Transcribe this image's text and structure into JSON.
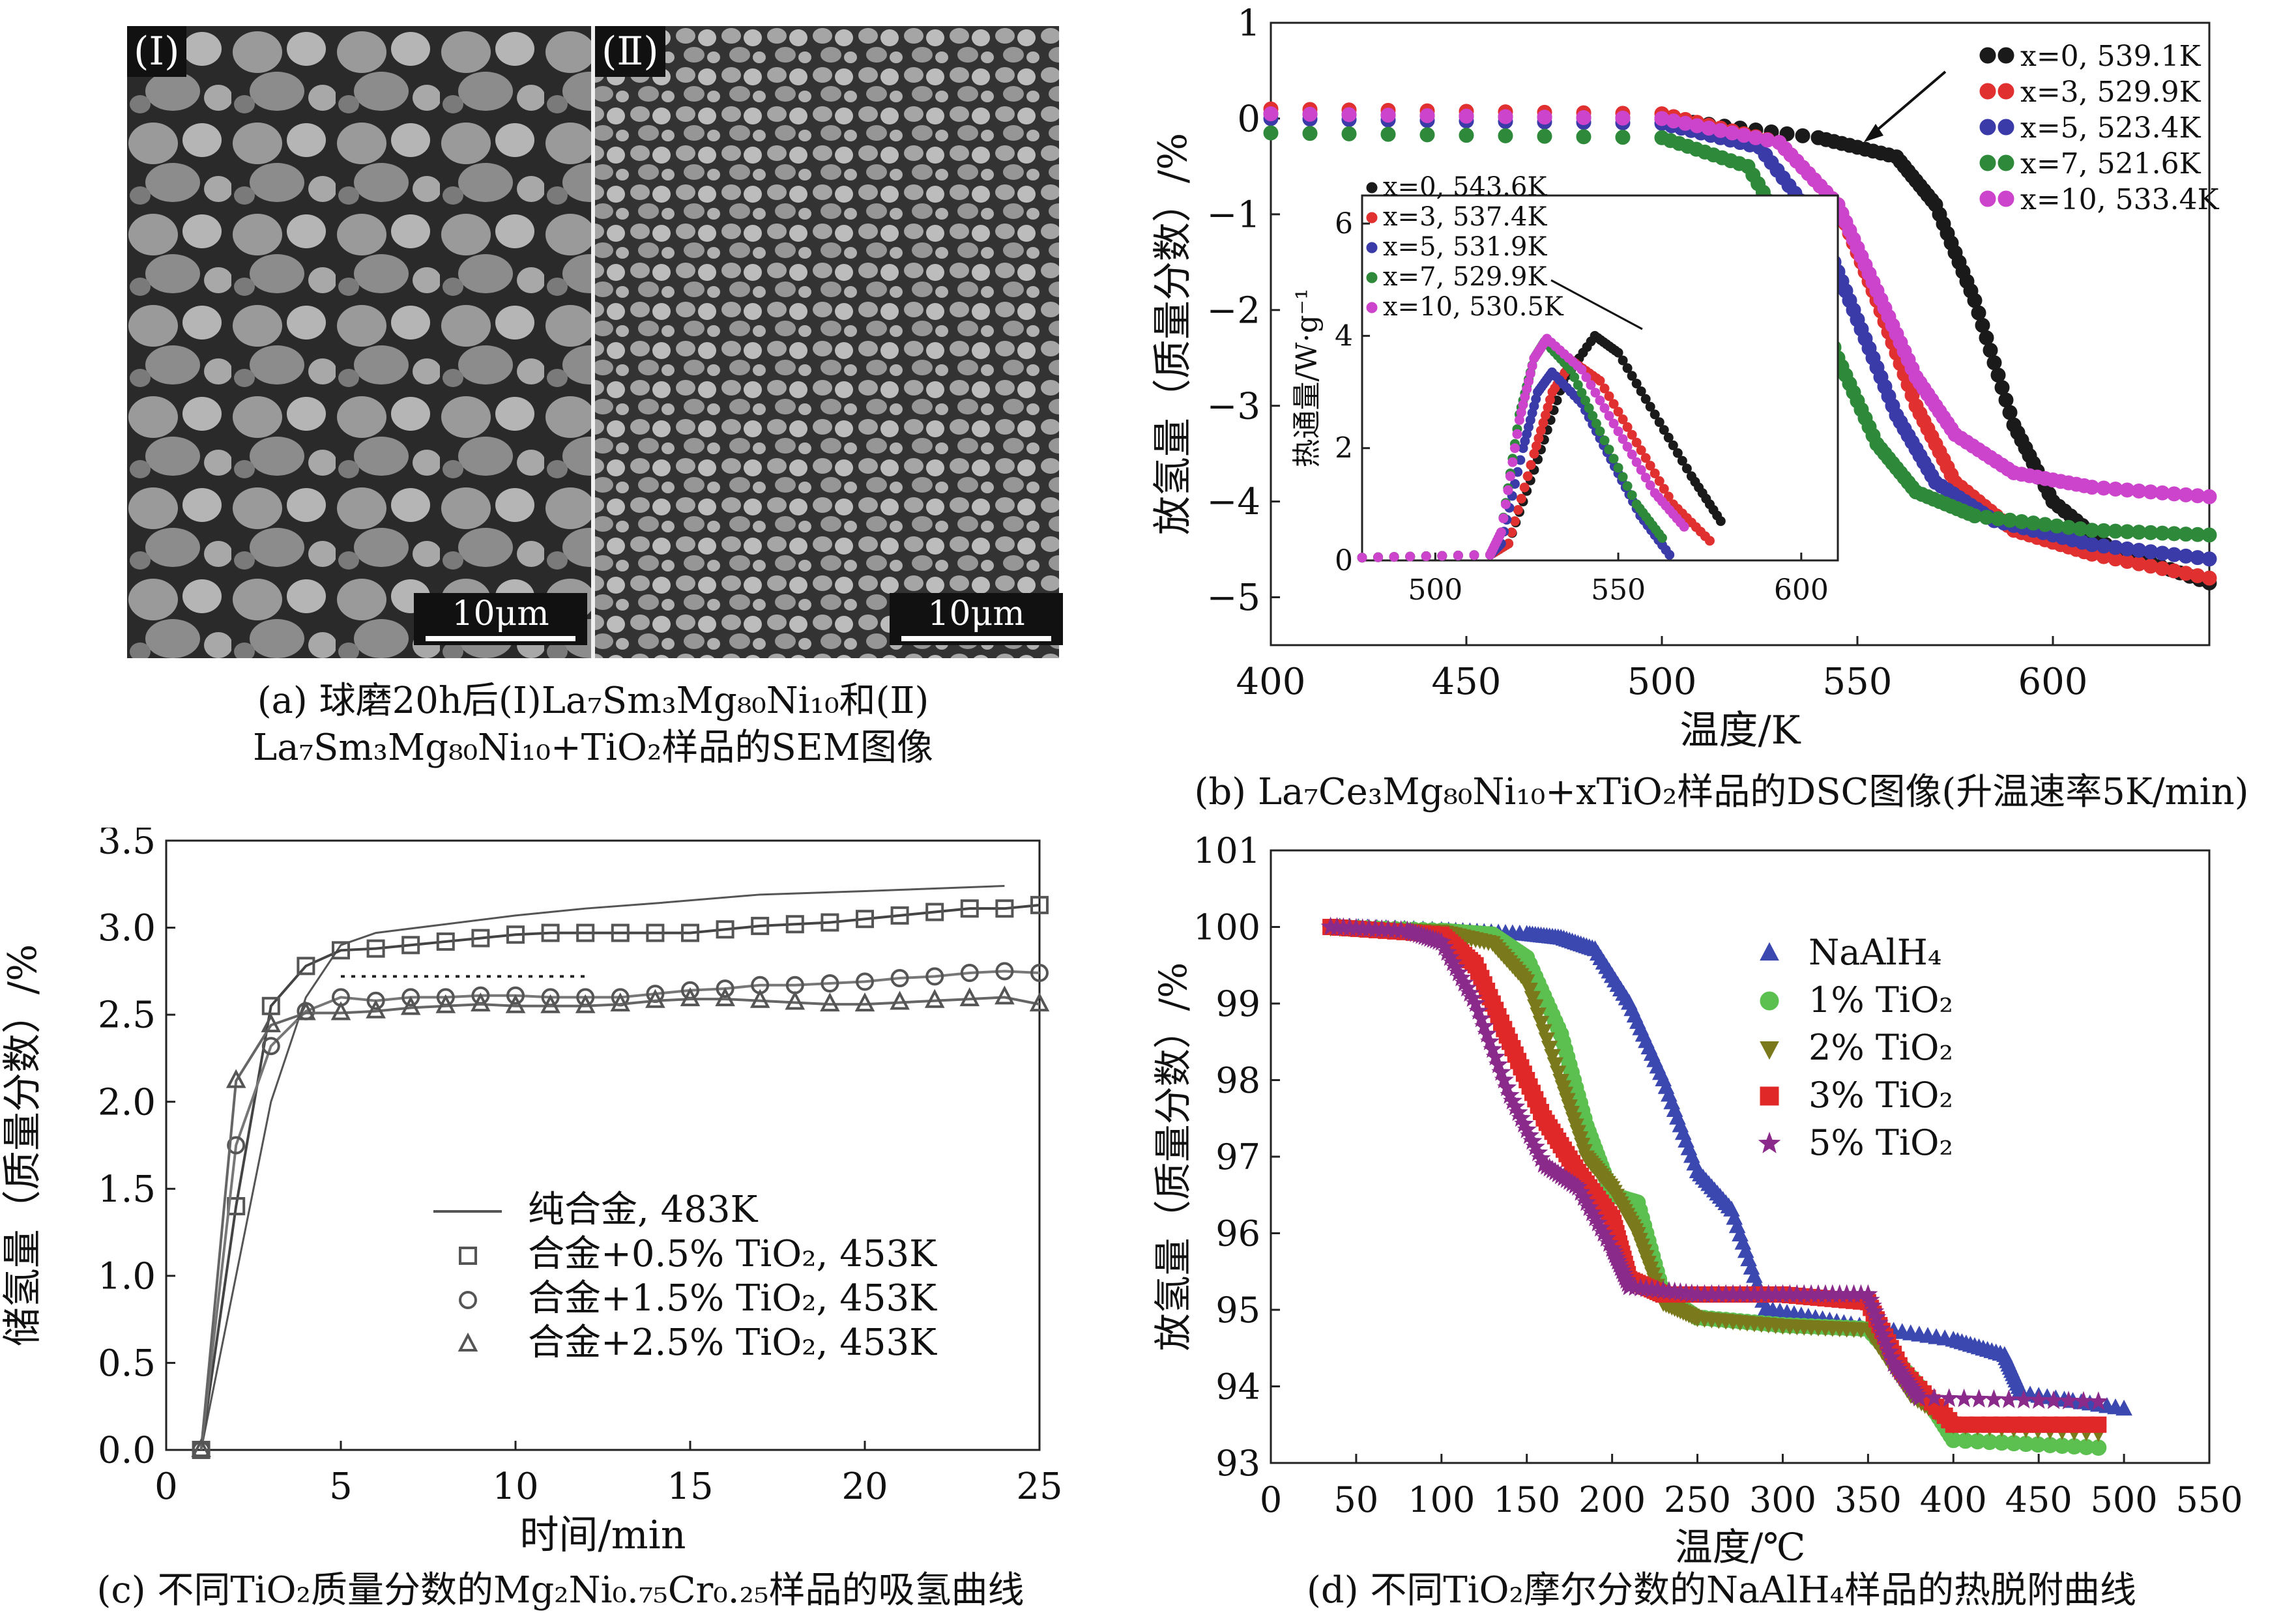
{
  "panel_a": {
    "label_I": "(Ⅰ)",
    "label_II": "(Ⅱ)",
    "scale_I": "10μm",
    "scale_II": "10μm",
    "caption_line1": "(a) 球磨20h后(Ⅰ)La₇Sm₃Mg₈₀Ni₁₀和(Ⅱ)",
    "caption_line2": "La₇Sm₃Mg₈₀Ni₁₀+TiO₂样品的SEM图像"
  },
  "panel_b": {
    "caption": "(b) La₇Ce₃Mg₈₀Ni₁₀+xTiO₂样品的DSC图像(升温速率5K/min)"
  },
  "panel_c": {
    "caption": "(c) 不同TiO₂质量分数的Mg₂Ni₀.₇₅Cr₀.₂₅样品的吸氢曲线"
  },
  "panel_d": {
    "caption": "(d) 不同TiO₂摩尔分数的NaAlH₄样品的热脱附曲线"
  },
  "chart_data": [
    {
      "id": "b_main",
      "type": "line",
      "xlabel": "温度/K",
      "ylabel": "放氢量（质量分数）/%",
      "xlim": [
        400,
        640
      ],
      "ylim": [
        -5.5,
        1
      ],
      "xticks": [
        "400",
        "450",
        "500",
        "550",
        "600"
      ],
      "yticks": [
        "1",
        "0",
        "−1",
        "−2",
        "−3",
        "−4",
        "−5"
      ],
      "legend": "top-right",
      "series": [
        {
          "name": "x=0, 539.1K",
          "color": "#1a1a1a",
          "x": [
            400,
            500,
            540,
            560,
            570,
            580,
            590,
            600,
            615,
            640
          ],
          "y": [
            0.05,
            0.0,
            -0.2,
            -0.4,
            -0.9,
            -1.9,
            -3.2,
            -4.0,
            -4.5,
            -4.85
          ]
        },
        {
          "name": "x=3, 529.9K",
          "color": "#e03030",
          "x": [
            400,
            500,
            530,
            545,
            555,
            565,
            575,
            590,
            610,
            640
          ],
          "y": [
            0.1,
            0.05,
            -0.25,
            -0.9,
            -1.9,
            -3.0,
            -3.8,
            -4.3,
            -4.55,
            -4.8
          ]
        },
        {
          "name": "x=5, 523.4K",
          "color": "#3a3aa8",
          "x": [
            400,
            500,
            525,
            540,
            550,
            560,
            570,
            585,
            610,
            640
          ],
          "y": [
            0.0,
            -0.05,
            -0.3,
            -1.1,
            -2.1,
            -3.1,
            -3.8,
            -4.2,
            -4.45,
            -4.6
          ]
        },
        {
          "name": "x=7, 521.6K",
          "color": "#2e8a3a",
          "x": [
            400,
            500,
            522,
            535,
            545,
            555,
            565,
            580,
            610,
            640
          ],
          "y": [
            -0.15,
            -0.2,
            -0.5,
            -1.4,
            -2.5,
            -3.4,
            -3.9,
            -4.15,
            -4.3,
            -4.35
          ]
        },
        {
          "name": "x=10, 533.4K",
          "color": "#cc44cc",
          "x": [
            400,
            500,
            530,
            545,
            555,
            565,
            575,
            590,
            610,
            640
          ],
          "y": [
            0.05,
            0.0,
            -0.25,
            -0.9,
            -1.8,
            -2.7,
            -3.3,
            -3.7,
            -3.85,
            -3.95
          ]
        }
      ]
    },
    {
      "id": "b_inset",
      "type": "line",
      "xlabel": "",
      "ylabel": "热通量/W·g⁻¹",
      "xlim": [
        480,
        610
      ],
      "ylim": [
        0,
        6.5
      ],
      "xticks": [
        "500",
        "550",
        "600"
      ],
      "yticks": [
        "0",
        "2",
        "4",
        "6"
      ],
      "legend": "top-left",
      "series": [
        {
          "name": "x=0, 543.6K",
          "color": "#1a1a1a",
          "x": [
            480,
            515,
            520,
            528,
            535,
            543.6,
            550,
            560,
            570,
            578
          ],
          "y": [
            0.05,
            0.1,
            0.3,
            1.8,
            3.2,
            4.0,
            3.7,
            2.6,
            1.5,
            0.7
          ]
        },
        {
          "name": "x=3, 537.4K",
          "color": "#e03030",
          "x": [
            480,
            515,
            520,
            527,
            532,
            537.4,
            545,
            555,
            565,
            575
          ],
          "y": [
            0.05,
            0.1,
            0.3,
            1.9,
            3.0,
            3.55,
            3.2,
            2.1,
            1.0,
            0.35
          ]
        },
        {
          "name": "x=5, 531.9K",
          "color": "#3a3aa8",
          "x": [
            480,
            515,
            518,
            524,
            528,
            531.9,
            540,
            548,
            556,
            564
          ],
          "y": [
            0.05,
            0.1,
            0.3,
            2.0,
            3.0,
            3.35,
            2.8,
            1.8,
            0.8,
            0.1
          ]
        },
        {
          "name": "x=7, 529.9K",
          "color": "#2e8a3a",
          "x": [
            480,
            515,
            518,
            523,
            527,
            529.9,
            537,
            545,
            555,
            562
          ],
          "y": [
            0.05,
            0.1,
            0.5,
            2.6,
            3.6,
            3.9,
            3.4,
            2.3,
            1.0,
            0.4
          ]
        },
        {
          "name": "x=10, 530.5K",
          "color": "#cc44cc",
          "x": [
            480,
            515,
            518,
            523,
            527,
            530.5,
            540,
            550,
            560,
            568
          ],
          "y": [
            0.05,
            0.1,
            0.5,
            2.5,
            3.6,
            3.95,
            3.4,
            2.3,
            1.2,
            0.6
          ]
        }
      ]
    },
    {
      "id": "c",
      "type": "line",
      "xlabel": "时间/min",
      "ylabel": "储氢量（质量分数）/%",
      "xlim": [
        0,
        25
      ],
      "ylim": [
        0,
        3.5
      ],
      "xticks": [
        "0",
        "5",
        "10",
        "15",
        "20",
        "25"
      ],
      "yticks": [
        "0.0",
        "0.5",
        "1.0",
        "1.5",
        "2.0",
        "2.5",
        "3.0",
        "3.5"
      ],
      "legend": "center-right",
      "series": [
        {
          "name": "纯合金, 483K",
          "marker": "none",
          "x": [
            1,
            2,
            3,
            4,
            5,
            6,
            8,
            10,
            12,
            14,
            17,
            20,
            24
          ],
          "y": [
            0.0,
            1.0,
            2.0,
            2.6,
            2.9,
            2.97,
            3.02,
            3.07,
            3.11,
            3.14,
            3.19,
            3.21,
            3.24
          ]
        },
        {
          "name": "合金+0.5% TiO₂, 453K",
          "marker": "square",
          "x": [
            1,
            2,
            3,
            4,
            5,
            6,
            7,
            8,
            9,
            10,
            11,
            12,
            13,
            14,
            15,
            16,
            17,
            18,
            19,
            20,
            21,
            22,
            23,
            24,
            25
          ],
          "y": [
            0.0,
            1.4,
            2.55,
            2.78,
            2.87,
            2.88,
            2.9,
            2.92,
            2.94,
            2.96,
            2.97,
            2.97,
            2.97,
            2.97,
            2.97,
            2.99,
            3.01,
            3.02,
            3.03,
            3.05,
            3.07,
            3.09,
            3.11,
            3.11,
            3.13
          ]
        },
        {
          "name": "合金+1.5% TiO₂, 453K",
          "marker": "circle",
          "x": [
            1,
            2,
            3,
            4,
            5,
            6,
            7,
            8,
            9,
            10,
            11,
            12,
            13,
            14,
            15,
            16,
            17,
            18,
            19,
            20,
            21,
            22,
            23,
            24,
            25
          ],
          "y": [
            0.0,
            1.75,
            2.32,
            2.52,
            2.6,
            2.58,
            2.6,
            2.6,
            2.61,
            2.61,
            2.6,
            2.6,
            2.6,
            2.62,
            2.64,
            2.65,
            2.67,
            2.67,
            2.68,
            2.69,
            2.71,
            2.72,
            2.74,
            2.75,
            2.74
          ]
        },
        {
          "name": "合金+2.5% TiO₂, 453K",
          "marker": "triangle",
          "x": [
            1,
            2,
            3,
            4,
            5,
            6,
            7,
            8,
            9,
            10,
            11,
            12,
            13,
            14,
            15,
            16,
            17,
            18,
            19,
            20,
            21,
            22,
            23,
            24,
            25
          ],
          "y": [
            0.0,
            2.12,
            2.44,
            2.51,
            2.51,
            2.52,
            2.54,
            2.55,
            2.56,
            2.55,
            2.55,
            2.55,
            2.56,
            2.58,
            2.59,
            2.59,
            2.58,
            2.57,
            2.56,
            2.56,
            2.57,
            2.58,
            2.59,
            2.6,
            2.56
          ]
        }
      ],
      "annotations": [
        {
          "type": "dotted-line",
          "x": [
            5,
            12
          ],
          "y": [
            2.72,
            2.72
          ]
        }
      ]
    },
    {
      "id": "d",
      "type": "scatter",
      "xlabel": "温度/℃",
      "ylabel": "放氢量（质量分数）/%",
      "xlim": [
        0,
        550
      ],
      "ylim": [
        93,
        101
      ],
      "xticks": [
        "0",
        "50",
        "100",
        "150",
        "200",
        "250",
        "300",
        "350",
        "400",
        "450",
        "500",
        "550"
      ],
      "yticks": [
        "93",
        "94",
        "95",
        "96",
        "97",
        "98",
        "99",
        "100",
        "101"
      ],
      "legend": "top-center",
      "series": [
        {
          "name": "NaAlH₄",
          "marker": "triangle",
          "color": "#3a48b0",
          "x": [
            35,
            100,
            150,
            170,
            190,
            210,
            230,
            250,
            270,
            290,
            340,
            400,
            430,
            440,
            500
          ],
          "y": [
            100.0,
            99.95,
            99.9,
            99.85,
            99.7,
            99.0,
            98.0,
            96.8,
            96.3,
            95.0,
            94.8,
            94.6,
            94.4,
            93.9,
            93.7
          ]
        },
        {
          "name": "1% TiO₂",
          "marker": "circle",
          "color": "#5cc050",
          "x": [
            35,
            100,
            130,
            150,
            170,
            185,
            200,
            215,
            230,
            250,
            300,
            350,
            380,
            400,
            485
          ],
          "y": [
            100.0,
            99.95,
            99.9,
            99.6,
            98.6,
            97.4,
            96.5,
            96.4,
            95.2,
            94.9,
            94.8,
            94.75,
            94.0,
            93.3,
            93.2
          ]
        },
        {
          "name": "2% TiO₂",
          "marker": "triangle-down",
          "color": "#7a7a1c",
          "x": [
            35,
            100,
            130,
            150,
            170,
            185,
            200,
            215,
            230,
            250,
            300,
            350,
            375,
            400,
            485
          ],
          "y": [
            100.0,
            99.95,
            99.8,
            99.3,
            98.0,
            97.0,
            96.6,
            96.0,
            95.1,
            94.9,
            94.8,
            94.75,
            93.9,
            93.5,
            93.4
          ]
        },
        {
          "name": "3% TiO₂",
          "marker": "square",
          "color": "#e02828",
          "x": [
            35,
            100,
            120,
            140,
            160,
            180,
            200,
            210,
            230,
            260,
            300,
            350,
            370,
            400,
            485
          ],
          "y": [
            100.0,
            99.9,
            99.5,
            98.5,
            97.5,
            96.8,
            96.2,
            95.4,
            95.2,
            95.2,
            95.2,
            95.1,
            94.2,
            93.5,
            93.5
          ]
        },
        {
          "name": "5% TiO₂",
          "marker": "star",
          "color": "#8a2a8a",
          "x": [
            35,
            80,
            100,
            120,
            140,
            160,
            180,
            200,
            210,
            250,
            300,
            350,
            365,
            380,
            485
          ],
          "y": [
            100.0,
            99.95,
            99.8,
            99.0,
            97.8,
            96.9,
            96.6,
            95.8,
            95.3,
            95.2,
            95.2,
            95.2,
            94.3,
            93.85,
            93.8
          ]
        }
      ]
    }
  ]
}
